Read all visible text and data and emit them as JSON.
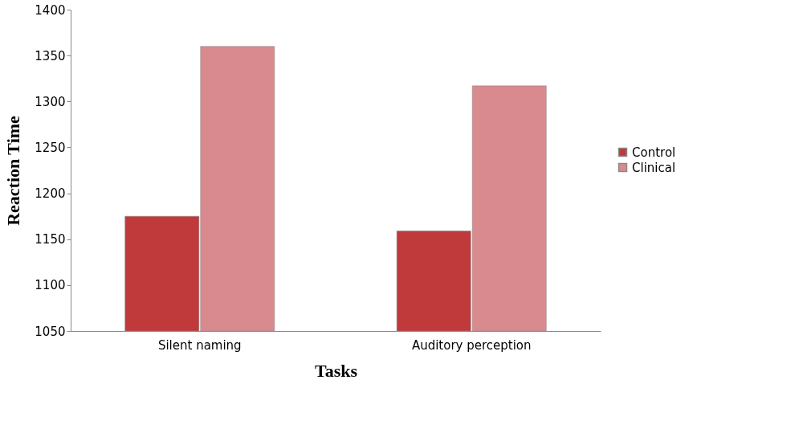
{
  "chart_data": {
    "type": "bar",
    "xlabel": "Tasks",
    "ylabel": "Reaction Time",
    "categories": [
      "Silent naming",
      "Auditory perception"
    ],
    "series": [
      {
        "name": "Control",
        "color": "#c0393b",
        "values": [
          1175,
          1159
        ]
      },
      {
        "name": "Clinical",
        "color": "#d98a8e",
        "values": [
          1360,
          1317
        ]
      }
    ],
    "ylim": [
      1050,
      1400
    ],
    "yticks": [
      1050,
      1100,
      1150,
      1200,
      1250,
      1300,
      1350,
      1400
    ],
    "grid": false,
    "legend": "right"
  }
}
